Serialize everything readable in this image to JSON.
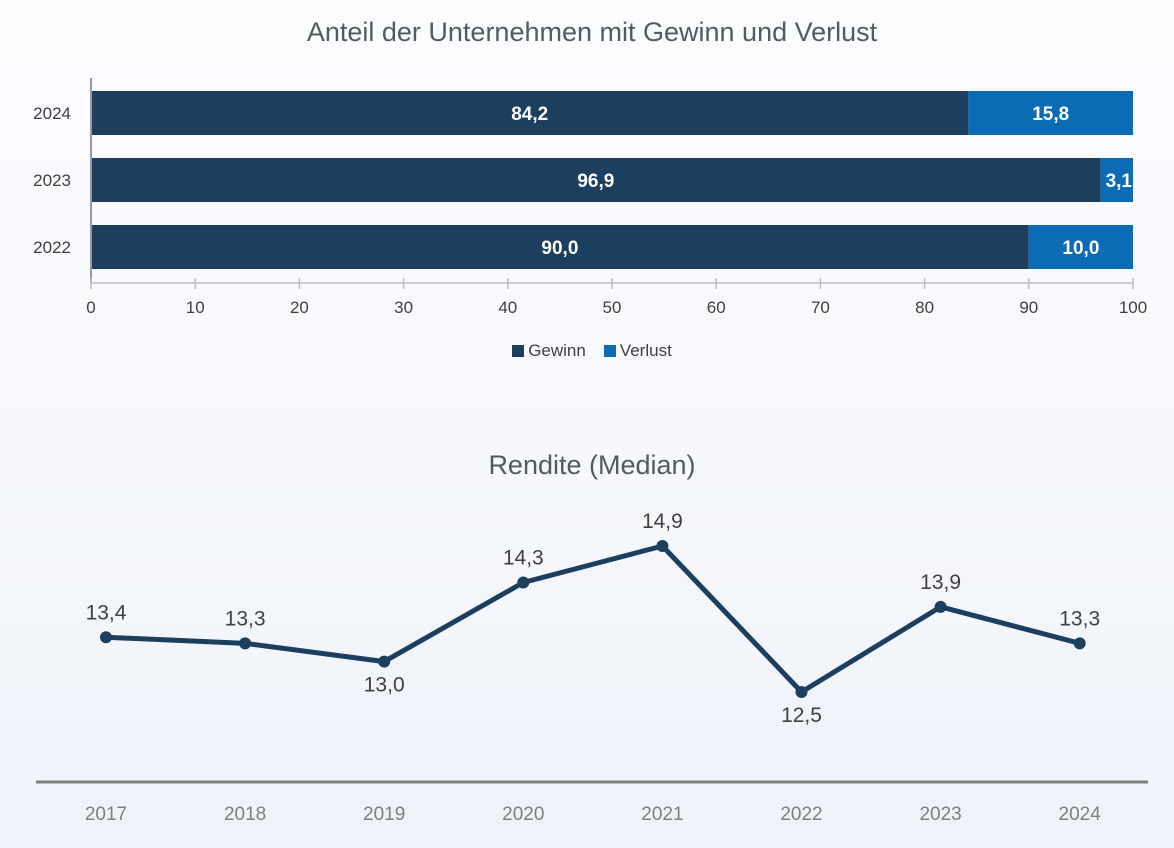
{
  "chart_data": [
    {
      "type": "bar",
      "orientation": "horizontal",
      "stacked": true,
      "title": "Anteil der Unternehmen mit Gewinn und Verlust",
      "categories": [
        "2024",
        "2023",
        "2022"
      ],
      "series": [
        {
          "name": "Gewinn",
          "values": [
            84.2,
            96.9,
            90.0
          ],
          "labels": [
            "84,2",
            "96,9",
            "90,0"
          ],
          "color": "#1c3f60"
        },
        {
          "name": "Verlust",
          "values": [
            15.8,
            3.1,
            10.0
          ],
          "labels": [
            "15,8",
            "3,1",
            "10,0"
          ],
          "color": "#0b6bb5"
        }
      ],
      "xlim": [
        0,
        100
      ],
      "xticks": [
        "0",
        "10",
        "20",
        "30",
        "40",
        "50",
        "60",
        "70",
        "80",
        "90",
        "100"
      ],
      "legend_position": "bottom"
    },
    {
      "type": "line",
      "title": "Rendite (Median)",
      "categories": [
        "2017",
        "2018",
        "2019",
        "2020",
        "2021",
        "2022",
        "2023",
        "2024"
      ],
      "values": [
        13.4,
        13.3,
        13.0,
        14.3,
        14.9,
        12.5,
        13.9,
        13.3
      ],
      "labels": [
        "13,4",
        "13,3",
        "13,0",
        "14,3",
        "14,9",
        "12,5",
        "13,9",
        "13,3"
      ],
      "label_positions": [
        "above",
        "above",
        "below",
        "above",
        "above",
        "below",
        "above",
        "above"
      ],
      "color": "#1c3f60"
    }
  ]
}
